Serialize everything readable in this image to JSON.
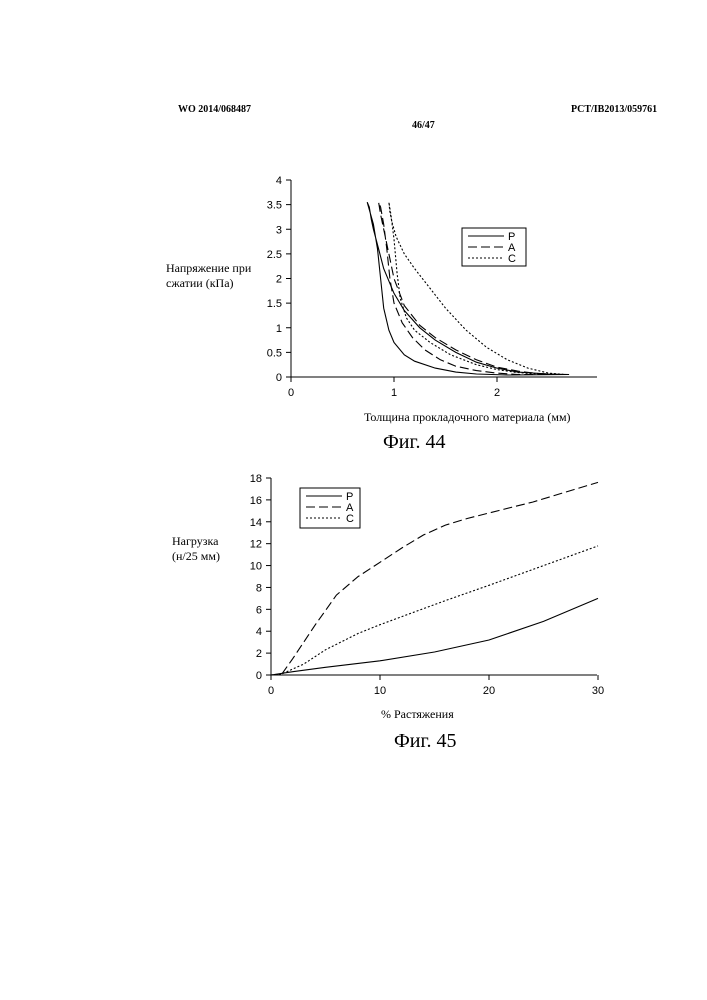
{
  "header": {
    "left": "WO 2014/068487",
    "right": "PCT/IB2013/059761",
    "page": "46/47"
  },
  "chart_data": [
    {
      "type": "line",
      "figure_caption": "Фиг. 44",
      "title": "",
      "ylabel_line1": "Напряжение при",
      "ylabel_line2": "сжатии (кПа)",
      "xlabel": "Толщина прокладочного материала (мм)",
      "xlim": [
        0,
        3
      ],
      "ylim": [
        0,
        4
      ],
      "x_ticks": [
        0,
        1,
        2
      ],
      "y_ticks": [
        0,
        0.5,
        1,
        1.5,
        2,
        2.5,
        3,
        3.5,
        4
      ],
      "y_tick_labels": [
        "0",
        "0.5",
        "1",
        "1.5",
        "2",
        "2.5",
        "3",
        "3.5",
        "4"
      ],
      "grid": false,
      "legend_position": "top-right",
      "series": [
        {
          "name": "P",
          "style": "solid",
          "points": [
            [
              2.7,
              0.05
            ],
            [
              2.5,
              0.06
            ],
            [
              2.2,
              0.1
            ],
            [
              2.0,
              0.18
            ],
            [
              1.8,
              0.3
            ],
            [
              1.6,
              0.5
            ],
            [
              1.4,
              0.75
            ],
            [
              1.25,
              1.0
            ],
            [
              1.1,
              1.35
            ],
            [
              1.0,
              1.7
            ],
            [
              0.9,
              2.2
            ],
            [
              0.85,
              2.6
            ],
            [
              0.8,
              3.0
            ],
            [
              0.78,
              3.2
            ],
            [
              0.76,
              3.45
            ],
            [
              0.74,
              3.55
            ],
            [
              0.76,
              3.4
            ],
            [
              0.8,
              3.1
            ],
            [
              0.84,
              2.6
            ],
            [
              0.87,
              2.0
            ],
            [
              0.9,
              1.4
            ],
            [
              0.95,
              0.95
            ],
            [
              1.0,
              0.7
            ],
            [
              1.1,
              0.45
            ],
            [
              1.2,
              0.32
            ],
            [
              1.4,
              0.18
            ],
            [
              1.6,
              0.1
            ],
            [
              1.8,
              0.06
            ],
            [
              2.1,
              0.04
            ],
            [
              2.7,
              0.05
            ]
          ]
        },
        {
          "name": "A",
          "style": "dashed",
          "points": [
            [
              2.6,
              0.05
            ],
            [
              2.4,
              0.07
            ],
            [
              2.2,
              0.12
            ],
            [
              2.0,
              0.2
            ],
            [
              1.8,
              0.35
            ],
            [
              1.6,
              0.55
            ],
            [
              1.4,
              0.8
            ],
            [
              1.25,
              1.05
            ],
            [
              1.1,
              1.45
            ],
            [
              1.0,
              2.0
            ],
            [
              0.95,
              2.5
            ],
            [
              0.9,
              3.0
            ],
            [
              0.87,
              3.3
            ],
            [
              0.85,
              3.55
            ],
            [
              0.87,
              3.45
            ],
            [
              0.9,
              3.1
            ],
            [
              0.93,
              2.6
            ],
            [
              0.96,
              2.0
            ],
            [
              1.0,
              1.5
            ],
            [
              1.08,
              1.1
            ],
            [
              1.18,
              0.8
            ],
            [
              1.3,
              0.55
            ],
            [
              1.45,
              0.35
            ],
            [
              1.6,
              0.22
            ],
            [
              1.8,
              0.13
            ],
            [
              2.0,
              0.08
            ],
            [
              2.2,
              0.05
            ],
            [
              2.6,
              0.05
            ]
          ]
        },
        {
          "name": "C",
          "style": "dotted",
          "points": [
            [
              2.65,
              0.05
            ],
            [
              2.5,
              0.08
            ],
            [
              2.3,
              0.18
            ],
            [
              2.1,
              0.35
            ],
            [
              1.9,
              0.6
            ],
            [
              1.7,
              0.95
            ],
            [
              1.5,
              1.4
            ],
            [
              1.35,
              1.8
            ],
            [
              1.2,
              2.2
            ],
            [
              1.1,
              2.5
            ],
            [
              1.02,
              2.85
            ],
            [
              0.98,
              3.15
            ],
            [
              0.96,
              3.35
            ],
            [
              0.95,
              3.55
            ],
            [
              0.97,
              3.3
            ],
            [
              1.0,
              2.8
            ],
            [
              1.03,
              2.1
            ],
            [
              1.06,
              1.6
            ],
            [
              1.12,
              1.2
            ],
            [
              1.2,
              0.95
            ],
            [
              1.35,
              0.7
            ],
            [
              1.55,
              0.45
            ],
            [
              1.8,
              0.25
            ],
            [
              2.0,
              0.15
            ],
            [
              2.2,
              0.09
            ],
            [
              2.4,
              0.06
            ],
            [
              2.65,
              0.05
            ]
          ]
        }
      ]
    },
    {
      "type": "line",
      "figure_caption": "Фиг. 45",
      "title": "",
      "ylabel_line1": "Нагрузка",
      "ylabel_line2": "(н/25 мм)",
      "xlabel": "% Растяжения",
      "xlim": [
        0,
        30
      ],
      "ylim": [
        0,
        18
      ],
      "x_ticks": [
        0,
        10,
        20,
        30
      ],
      "y_ticks": [
        0,
        2,
        4,
        6,
        8,
        10,
        12,
        14,
        16,
        18
      ],
      "y_tick_labels": [
        "0",
        "2",
        "4",
        "6",
        "8",
        "10",
        "12",
        "14",
        "16",
        "18"
      ],
      "grid": false,
      "legend_position": "top-left",
      "series": [
        {
          "name": "P",
          "style": "solid",
          "points": [
            [
              0,
              0
            ],
            [
              2,
              0.3
            ],
            [
              5,
              0.7
            ],
            [
              10,
              1.3
            ],
            [
              15,
              2.1
            ],
            [
              20,
              3.2
            ],
            [
              25,
              4.9
            ],
            [
              30,
              7.0
            ]
          ]
        },
        {
          "name": "A",
          "style": "dashed",
          "points": [
            [
              1,
              0.1
            ],
            [
              2,
              1.5
            ],
            [
              4,
              4.5
            ],
            [
              6,
              7.3
            ],
            [
              8,
              9.0
            ],
            [
              10,
              10.3
            ],
            [
              12,
              11.6
            ],
            [
              14,
              12.8
            ],
            [
              16,
              13.7
            ],
            [
              18,
              14.3
            ],
            [
              20,
              14.8
            ],
            [
              22,
              15.3
            ],
            [
              24,
              15.8
            ],
            [
              26,
              16.4
            ],
            [
              28,
              17.0
            ],
            [
              30,
              17.6
            ]
          ]
        },
        {
          "name": "C",
          "style": "dotted",
          "points": [
            [
              0,
              0
            ],
            [
              1,
              0.1
            ],
            [
              3,
              1.0
            ],
            [
              5,
              2.3
            ],
            [
              8,
              3.8
            ],
            [
              10,
              4.6
            ],
            [
              13,
              5.7
            ],
            [
              16,
              6.8
            ],
            [
              20,
              8.2
            ],
            [
              25,
              10.0
            ],
            [
              30,
              11.8
            ]
          ]
        }
      ]
    }
  ]
}
